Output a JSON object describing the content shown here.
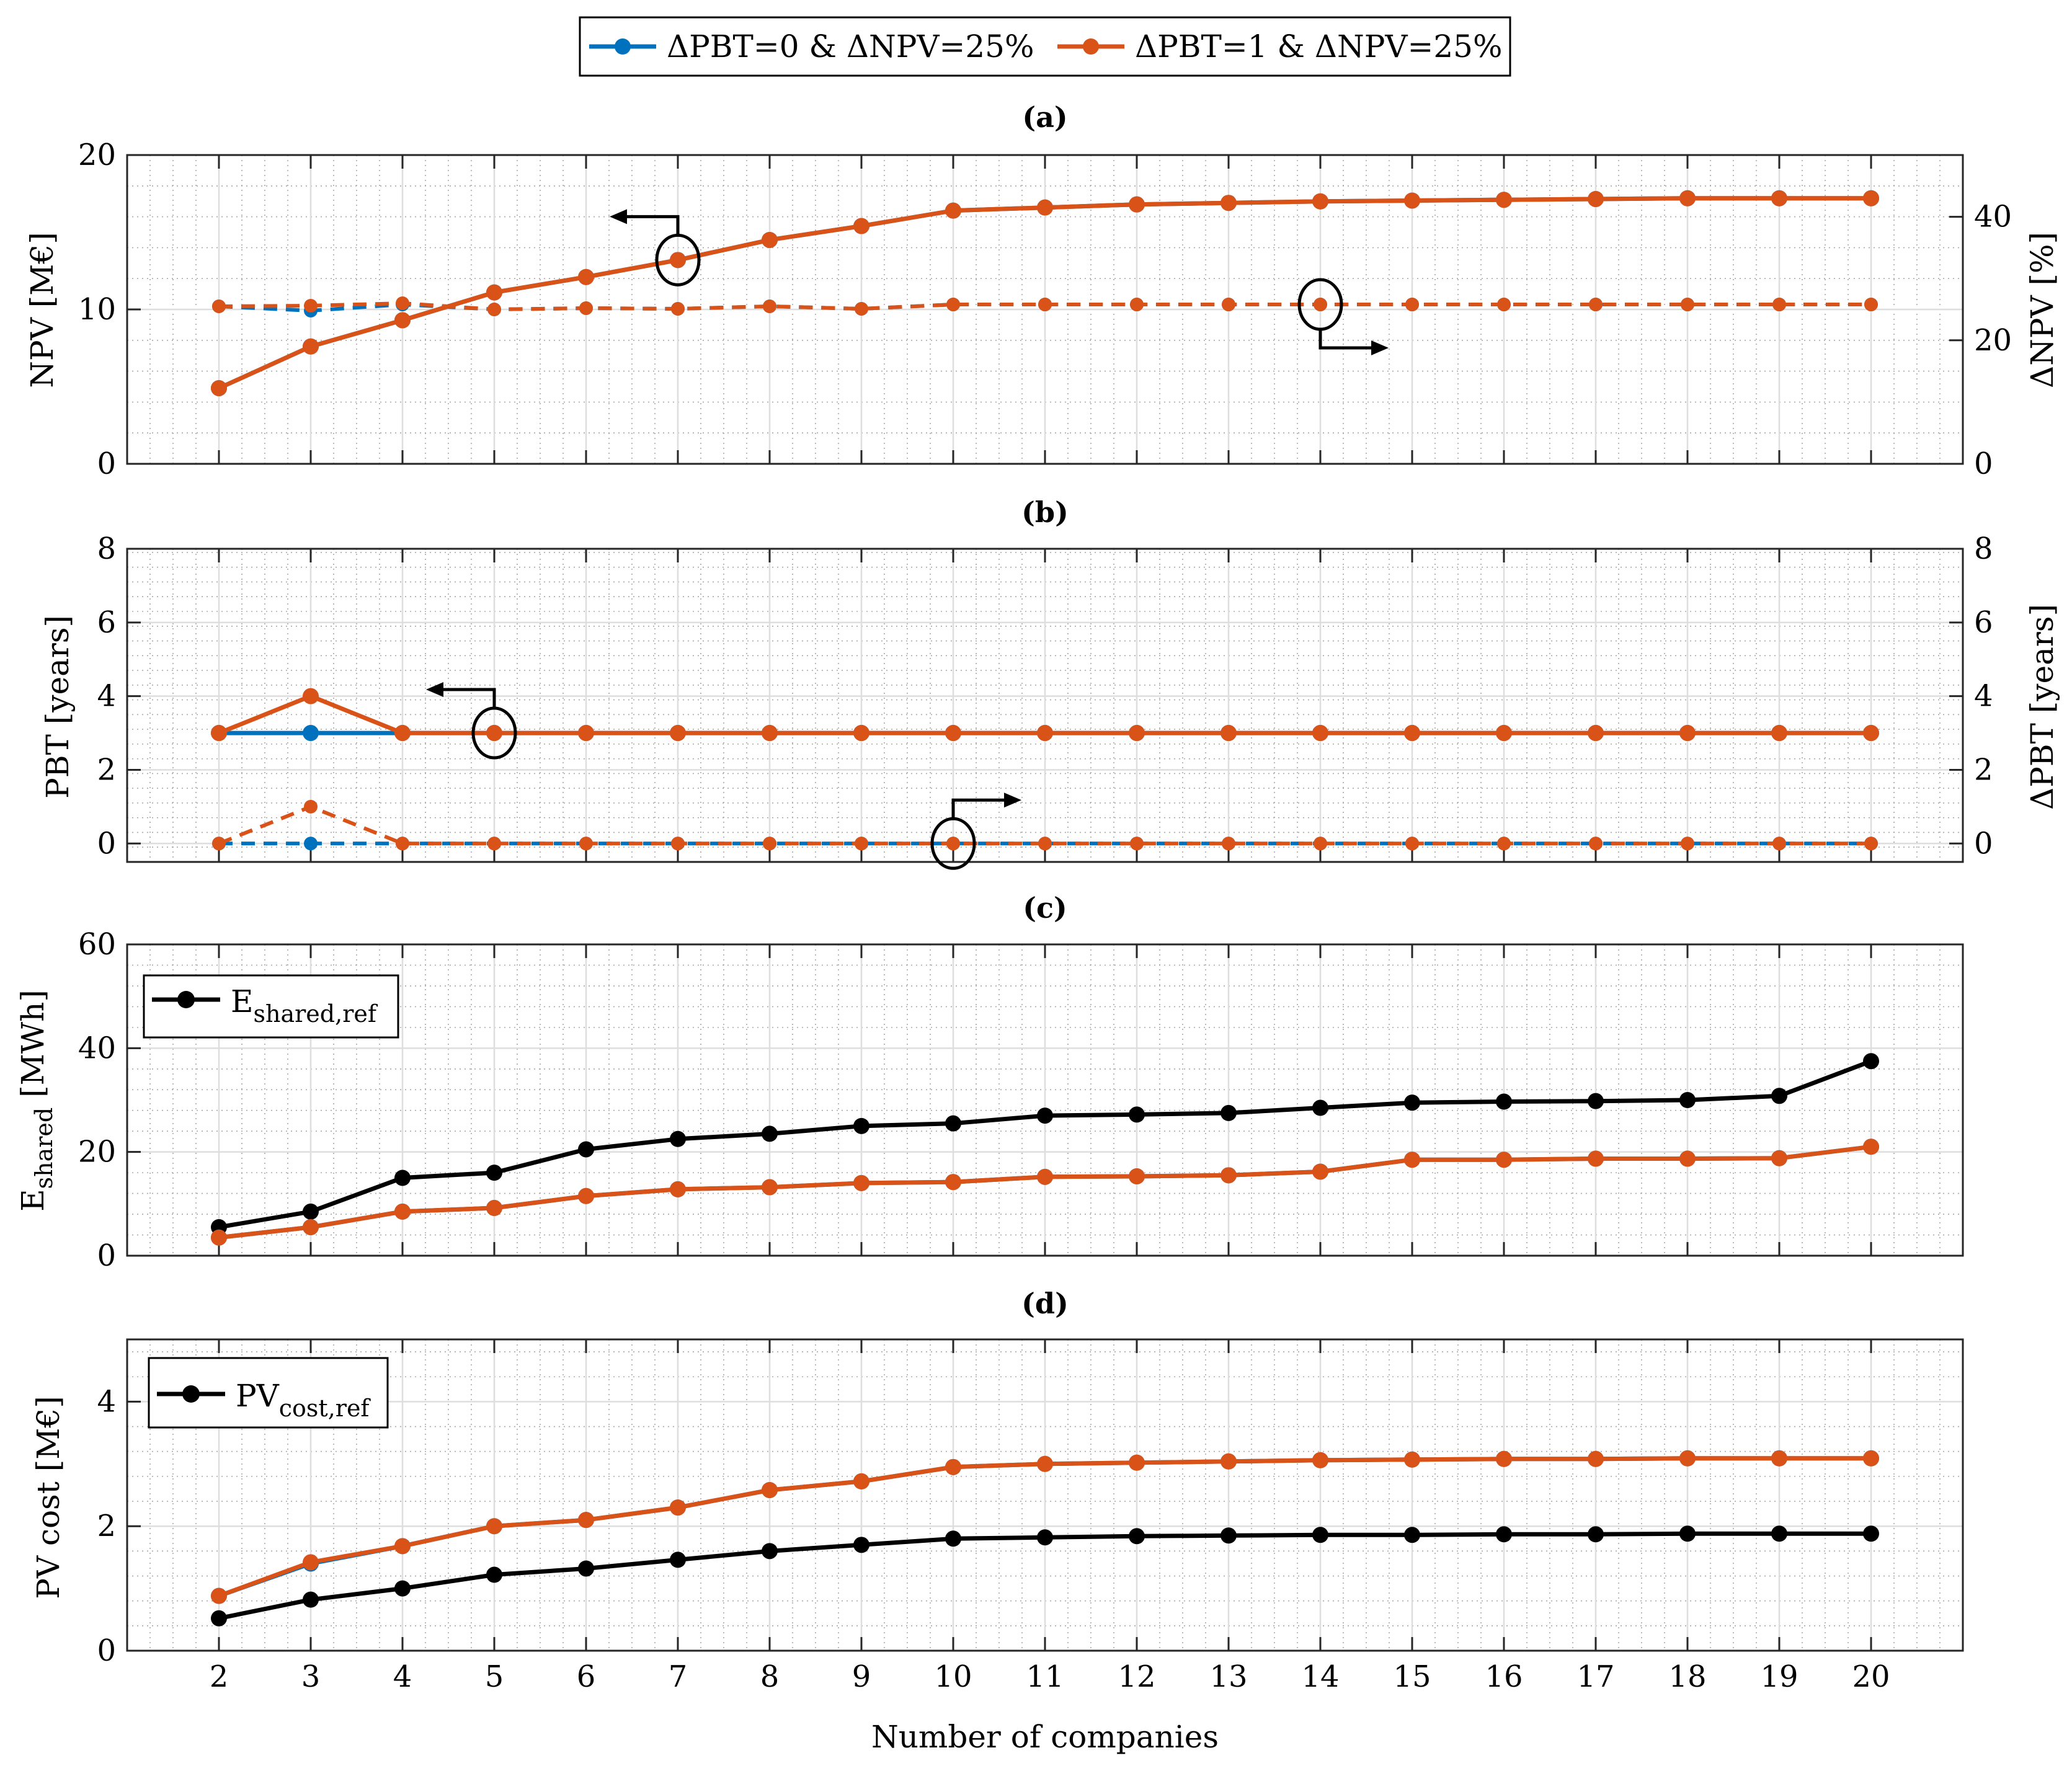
{
  "colors": {
    "blue": "#0072BD",
    "orange": "#D95319",
    "black": "#000000",
    "grid": "#DEDEDE",
    "minorGrid": "#A8A8A8"
  },
  "legend": {
    "series0": "ΔPBT=0 & ΔNPV=25%",
    "series1": "ΔPBT=1 & ΔNPV=25%"
  },
  "chart_data": [
    {
      "id": "a",
      "type": "line",
      "title": "(a)",
      "xlabel": "",
      "ylabel": "NPV [M€]",
      "ylabel_right": "ΔNPV [%]",
      "x": [
        2,
        3,
        4,
        5,
        6,
        7,
        8,
        9,
        10,
        11,
        12,
        13,
        14,
        15,
        16,
        17,
        18,
        19,
        20
      ],
      "ylim": [
        0,
        20
      ],
      "yticks": [
        0,
        10,
        20
      ],
      "ylim_right": [
        0,
        50
      ],
      "yticks_right": [
        0,
        20,
        40
      ],
      "series": [
        {
          "name": "ΔPBT=0 & ΔNPV=25% NPV",
          "axis": "left",
          "color": "blue",
          "dash": false,
          "values": [
            4.9,
            7.6,
            9.3,
            11.1,
            12.1,
            13.2,
            14.5,
            15.4,
            16.4,
            16.6,
            16.8,
            16.9,
            17.0,
            17.05,
            17.1,
            17.15,
            17.2,
            17.2,
            17.2
          ]
        },
        {
          "name": "ΔPBT=0 & ΔNPV=25% ΔNPV",
          "axis": "right",
          "color": "blue",
          "dash": true,
          "values": [
            25.5,
            24.8,
            25.8,
            25.0,
            25.2,
            25.1,
            25.5,
            25.1,
            25.8,
            25.8,
            25.8,
            25.8,
            25.8,
            25.8,
            25.8,
            25.8,
            25.8,
            25.8,
            25.8
          ]
        },
        {
          "name": "ΔPBT=1 & ΔNPV=25% NPV",
          "axis": "left",
          "color": "orange",
          "dash": false,
          "values": [
            4.9,
            7.6,
            9.3,
            11.1,
            12.1,
            13.2,
            14.5,
            15.4,
            16.4,
            16.6,
            16.8,
            16.9,
            17.0,
            17.05,
            17.1,
            17.15,
            17.2,
            17.2,
            17.2
          ]
        },
        {
          "name": "ΔPBT=1 & ΔNPV=25% ΔNPV",
          "axis": "right",
          "color": "orange",
          "dash": true,
          "values": [
            25.5,
            25.6,
            26.0,
            25.0,
            25.2,
            25.1,
            25.5,
            25.1,
            25.8,
            25.8,
            25.8,
            25.8,
            25.8,
            25.8,
            25.8,
            25.8,
            25.8,
            25.8,
            25.8
          ]
        }
      ],
      "annotations": [
        {
          "x": 7,
          "y": 13.2,
          "axis": "left",
          "direction": "left"
        },
        {
          "x": 14,
          "y": 25.8,
          "axis": "right",
          "direction": "right"
        }
      ]
    },
    {
      "id": "b",
      "type": "line",
      "title": "(b)",
      "xlabel": "",
      "ylabel": "PBT [years]",
      "ylabel_right": "ΔPBT [years]",
      "x": [
        2,
        3,
        4,
        5,
        6,
        7,
        8,
        9,
        10,
        11,
        12,
        13,
        14,
        15,
        16,
        17,
        18,
        19,
        20
      ],
      "ylim": [
        -0.5,
        8
      ],
      "yticks": [
        0,
        2,
        4,
        6,
        8
      ],
      "ylim_right": [
        -0.5,
        8
      ],
      "yticks_right": [
        0,
        2,
        4,
        6,
        8
      ],
      "series": [
        {
          "name": "ΔPBT=0 & ΔNPV=25% PBT",
          "axis": "left",
          "color": "blue",
          "dash": false,
          "values": [
            3,
            3,
            3,
            3,
            3,
            3,
            3,
            3,
            3,
            3,
            3,
            3,
            3,
            3,
            3,
            3,
            3,
            3,
            3
          ]
        },
        {
          "name": "ΔPBT=0 & ΔNPV=25% ΔPBT",
          "axis": "right",
          "color": "blue",
          "dash": true,
          "values": [
            0,
            0,
            0,
            0,
            0,
            0,
            0,
            0,
            0,
            0,
            0,
            0,
            0,
            0,
            0,
            0,
            0,
            0,
            0
          ]
        },
        {
          "name": "ΔPBT=1 & ΔNPV=25% PBT",
          "axis": "left",
          "color": "orange",
          "dash": false,
          "values": [
            3,
            4,
            3,
            3,
            3,
            3,
            3,
            3,
            3,
            3,
            3,
            3,
            3,
            3,
            3,
            3,
            3,
            3,
            3
          ]
        },
        {
          "name": "ΔPBT=1 & ΔNPV=25% ΔPBT",
          "axis": "right",
          "color": "orange",
          "dash": true,
          "values": [
            0,
            1,
            0,
            0,
            0,
            0,
            0,
            0,
            0,
            0,
            0,
            0,
            0,
            0,
            0,
            0,
            0,
            0,
            0
          ]
        }
      ],
      "annotations": [
        {
          "x": 5,
          "y": 3,
          "axis": "left",
          "direction": "left"
        },
        {
          "x": 10,
          "y": 0,
          "axis": "right",
          "direction": "right"
        }
      ]
    },
    {
      "id": "c",
      "type": "line",
      "title": "(c)",
      "xlabel": "",
      "ylabel": "E",
      "ylabel_sub": "shared",
      "ylabel_unit": " [MWh]",
      "x": [
        2,
        3,
        4,
        5,
        6,
        7,
        8,
        9,
        10,
        11,
        12,
        13,
        14,
        15,
        16,
        17,
        18,
        19,
        20
      ],
      "ylim": [
        0,
        60
      ],
      "yticks": [
        0,
        20,
        40,
        60
      ],
      "inner_legend": {
        "main": "E",
        "sub": "shared,ref"
      },
      "series": [
        {
          "name": "E_shared,ref",
          "axis": "left",
          "color": "black",
          "dash": false,
          "values": [
            5.5,
            8.5,
            15.0,
            16.0,
            20.5,
            22.5,
            23.5,
            25.0,
            25.5,
            27.0,
            27.2,
            27.5,
            28.5,
            29.5,
            29.7,
            29.8,
            30.0,
            30.8,
            37.5
          ]
        },
        {
          "name": "ΔPBT=0 & ΔNPV=25% E_shared",
          "axis": "left",
          "color": "blue",
          "dash": false,
          "values": [
            3.5,
            5.5,
            8.5,
            9.2,
            11.5,
            12.8,
            13.2,
            14.0,
            14.2,
            15.2,
            15.3,
            15.5,
            16.2,
            18.5,
            18.5,
            18.7,
            18.7,
            18.8,
            21.0
          ]
        },
        {
          "name": "ΔPBT=1 & ΔNPV=25% E_shared",
          "axis": "left",
          "color": "orange",
          "dash": false,
          "values": [
            3.5,
            5.5,
            8.5,
            9.2,
            11.5,
            12.8,
            13.2,
            14.0,
            14.2,
            15.2,
            15.3,
            15.5,
            16.2,
            18.5,
            18.5,
            18.7,
            18.7,
            18.8,
            21.0
          ]
        }
      ]
    },
    {
      "id": "d",
      "type": "line",
      "title": "(d)",
      "xlabel": "Number of companies",
      "ylabel": "PV cost [M€]",
      "x": [
        2,
        3,
        4,
        5,
        6,
        7,
        8,
        9,
        10,
        11,
        12,
        13,
        14,
        15,
        16,
        17,
        18,
        19,
        20
      ],
      "ylim": [
        0,
        5
      ],
      "yticks": [
        0,
        2,
        4
      ],
      "inner_legend": {
        "main": "PV",
        "sub": "cost,ref"
      },
      "series": [
        {
          "name": "PV_cost,ref",
          "axis": "left",
          "color": "black",
          "dash": false,
          "values": [
            0.52,
            0.82,
            1.0,
            1.22,
            1.32,
            1.46,
            1.6,
            1.7,
            1.8,
            1.82,
            1.84,
            1.85,
            1.86,
            1.86,
            1.87,
            1.87,
            1.88,
            1.88,
            1.88
          ]
        },
        {
          "name": "ΔPBT=0 & ΔNPV=25% PV cost",
          "axis": "left",
          "color": "blue",
          "dash": false,
          "values": [
            0.88,
            1.4,
            1.68,
            2.0,
            2.1,
            2.3,
            2.58,
            2.72,
            2.95,
            3.0,
            3.02,
            3.04,
            3.06,
            3.07,
            3.08,
            3.08,
            3.09,
            3.09,
            3.09
          ]
        },
        {
          "name": "ΔPBT=1 & ΔNPV=25% PV cost",
          "axis": "left",
          "color": "orange",
          "dash": false,
          "values": [
            0.88,
            1.42,
            1.68,
            2.0,
            2.1,
            2.3,
            2.58,
            2.72,
            2.95,
            3.0,
            3.02,
            3.04,
            3.06,
            3.07,
            3.08,
            3.08,
            3.09,
            3.09,
            3.09
          ]
        }
      ]
    }
  ]
}
